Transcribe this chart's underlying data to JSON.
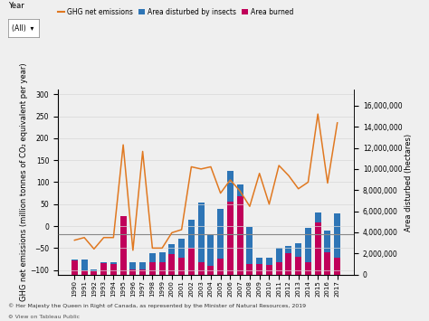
{
  "years": [
    1990,
    1991,
    1992,
    1993,
    1994,
    1995,
    1996,
    1997,
    1998,
    1999,
    2000,
    2001,
    2002,
    2003,
    2004,
    2005,
    2006,
    2007,
    2008,
    2009,
    2010,
    2011,
    2012,
    2013,
    2014,
    2015,
    2016,
    2017
  ],
  "ghg_net": [
    -32,
    -26,
    -52,
    -26,
    -26,
    185,
    -55,
    170,
    -50,
    -50,
    -15,
    -8,
    135,
    130,
    135,
    75,
    105,
    80,
    45,
    120,
    50,
    138,
    115,
    85,
    100,
    255,
    98,
    235
  ],
  "insects_ha": [
    1400000,
    1400000,
    500000,
    1200000,
    1200000,
    1300000,
    1200000,
    1200000,
    2000000,
    2100000,
    2900000,
    3400000,
    5200000,
    6800000,
    3800000,
    6200000,
    9800000,
    8500000,
    4500000,
    1600000,
    1600000,
    2500000,
    2700000,
    3000000,
    4400000,
    5900000,
    4200000,
    5800000
  ],
  "burned_ha": [
    1300000,
    400000,
    300000,
    1100000,
    1000000,
    5500000,
    500000,
    500000,
    1200000,
    1200000,
    1900000,
    1600000,
    2500000,
    1200000,
    800000,
    1500000,
    6900000,
    7400000,
    1000000,
    1000000,
    900000,
    1200000,
    2000000,
    1700000,
    1200000,
    4900000,
    2100000,
    1600000
  ],
  "ghg_color": "#e07820",
  "insects_color": "#2e75b6",
  "burned_color": "#c0005a",
  "refline_color": "#888888",
  "refline_ha": 3800000,
  "background_color": "#efefef",
  "plot_background": "#ffffff",
  "ylim_left": [
    -110,
    310
  ],
  "ylim_right": [
    0,
    17500000
  ],
  "yticks_left": [
    -100,
    -50,
    0,
    50,
    100,
    150,
    200,
    250,
    300
  ],
  "yticks_right": [
    0,
    2000000,
    4000000,
    6000000,
    8000000,
    10000000,
    12000000,
    14000000,
    16000000
  ],
  "ylabel_left": "GHG net emissions (million tonnes of CO₂ equivalent per year)",
  "ylabel_right": "Area disturbed (hectares)",
  "legend_labels": [
    "GHG net emissions",
    "Area disturbed by insects",
    "Area burned"
  ],
  "footer": "© Her Majesty the Queen in Right of Canada, as represented by the Minister of Natural Resources, 2019",
  "axis_fontsize": 6.0,
  "tick_fontsize": 5.5
}
